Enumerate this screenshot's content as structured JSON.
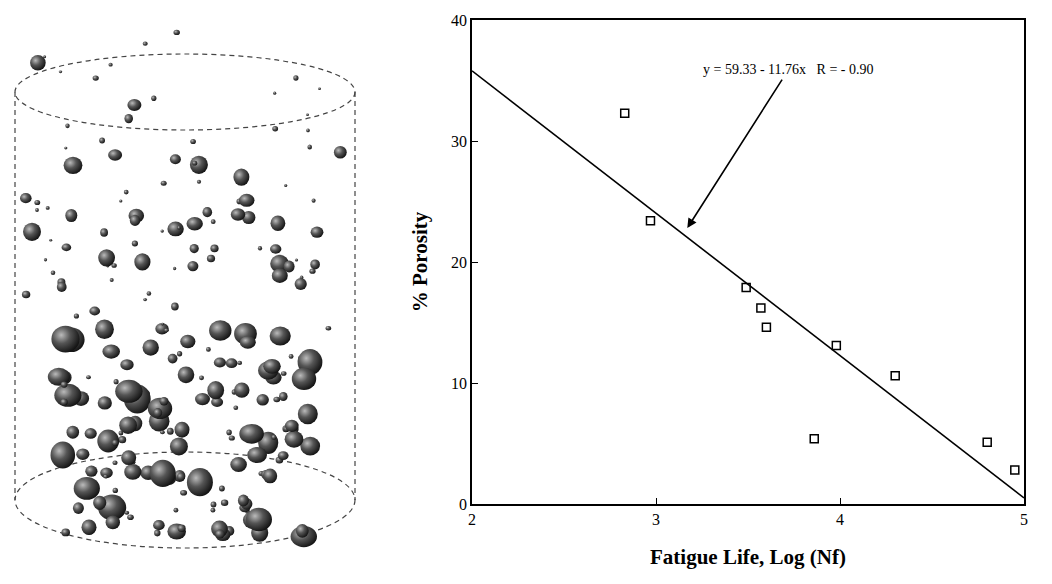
{
  "chart_data": {
    "type": "scatter",
    "x_label": "Fatigue Life, Log (Nf)",
    "y_label": "% Porosity",
    "annotations": [
      "y = 59.33 - 11.76x   R = - 0.90"
    ],
    "series": [
      {
        "type": "scatter",
        "marker": "square",
        "color": "#000000",
        "x": [
          2.83,
          2.97,
          3.49,
          3.57,
          3.6,
          3.86,
          3.98,
          4.3,
          4.8,
          4.95
        ],
        "values": [
          32.3,
          23.4,
          17.9,
          16.2,
          14.6,
          5.4,
          13.1,
          10.6,
          5.1,
          2.8
        ]
      },
      {
        "type": "line",
        "line_style": "solid",
        "color": "#000000",
        "x": [
          2,
          5
        ],
        "values": [
          35.8,
          0.5
        ]
      }
    ],
    "xlim": [
      2,
      5
    ],
    "xticks": [
      2,
      3,
      4,
      5
    ],
    "ylim": [
      0,
      40
    ],
    "yticks": [
      0,
      10,
      20,
      30,
      40
    ],
    "grid": false
  }
}
